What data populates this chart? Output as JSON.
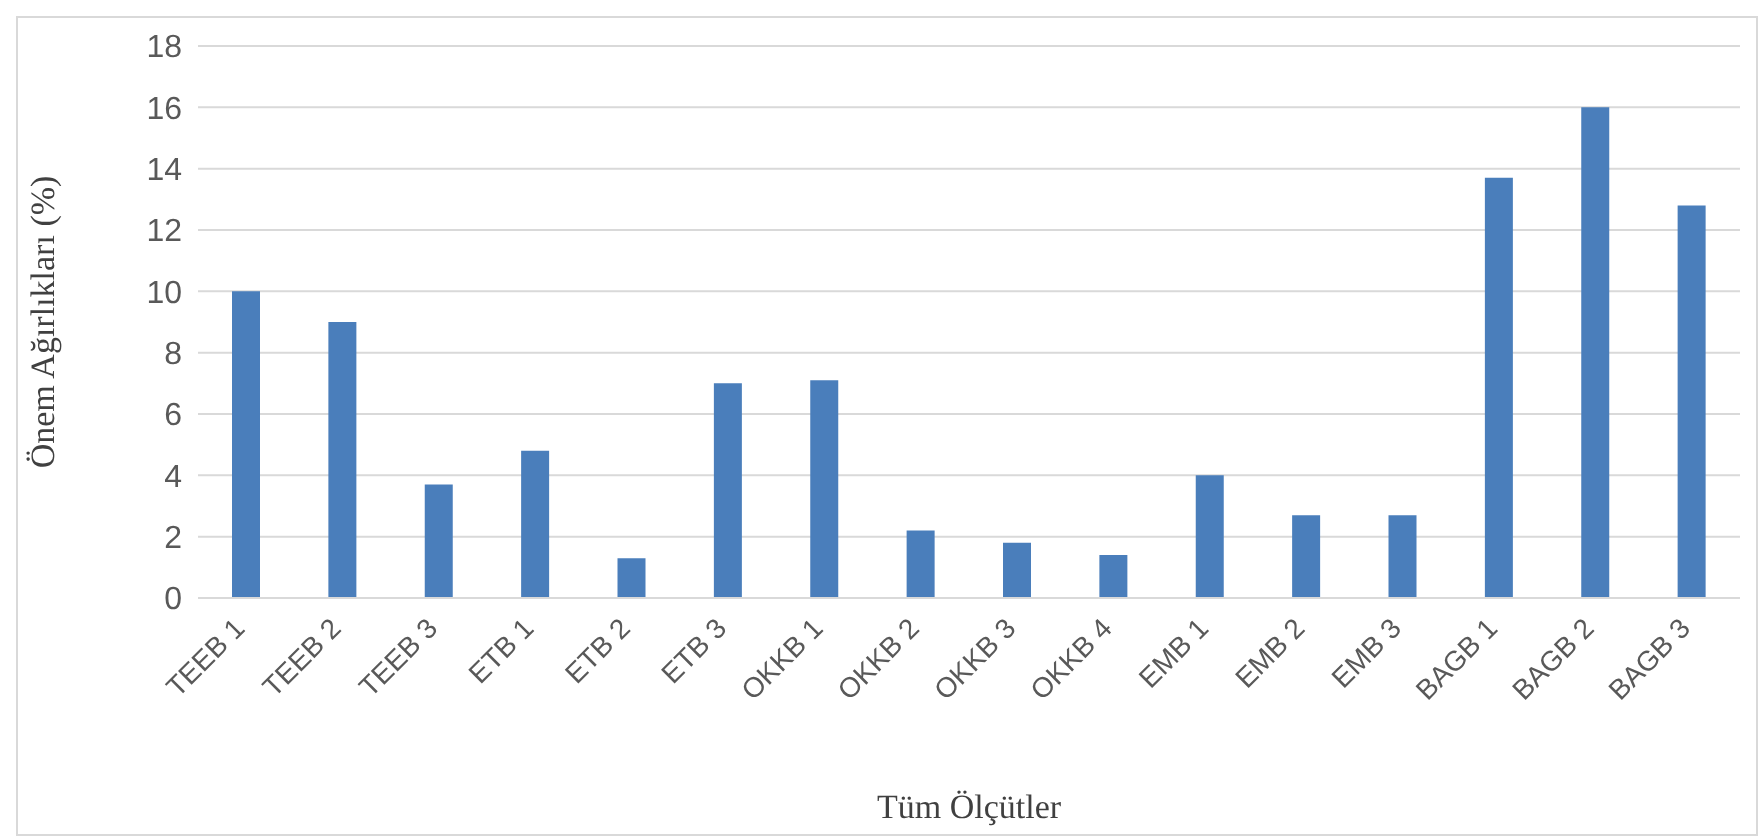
{
  "chart_data": {
    "type": "bar",
    "xlabel": "Tüm Ölçütler",
    "ylabel": "Önem Ağırlıkları (%)",
    "categories": [
      "TEEB 1",
      "TEEB 2",
      "TEEB 3",
      "ETB 1",
      "ETB 2",
      "ETB 3",
      "OKKB 1",
      "OKKB 2",
      "OKKB 3",
      "OKKB 4",
      "EMB 1",
      "EMB 2",
      "EMB 3",
      "BAGB 1",
      "BAGB 2",
      "BAGB 3"
    ],
    "values": [
      10,
      9,
      3.7,
      4.8,
      1.3,
      7,
      7.1,
      2.2,
      1.8,
      1.4,
      4,
      2.7,
      2.7,
      13.7,
      16,
      12.8
    ],
    "color": "#4a7ebb",
    "ylim": [
      0,
      18
    ],
    "yticks": [
      0,
      2,
      4,
      6,
      8,
      10,
      12,
      14,
      16,
      18
    ],
    "grid": "y"
  }
}
